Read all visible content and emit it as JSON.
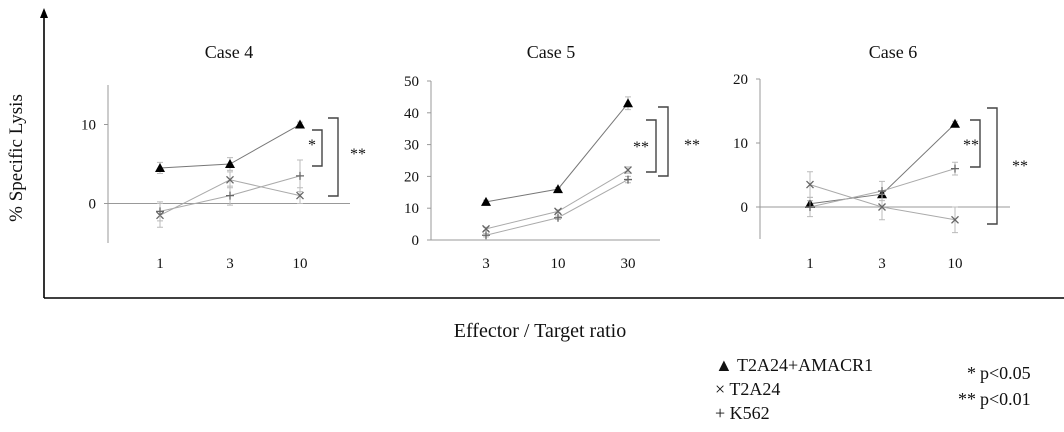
{
  "figure": {
    "ylabel": "% Specific Lysis",
    "xlabel": "Effector / Target ratio"
  },
  "chart_data": [
    {
      "type": "line",
      "title": "Case 4",
      "x": [
        "1",
        "3",
        "10"
      ],
      "ylim": [
        -5,
        15
      ],
      "yticks": [
        0,
        10
      ],
      "series": [
        {
          "name": "T2A24+AMACR1",
          "marker": "triangle",
          "values": [
            4.5,
            5.0,
            10.0
          ],
          "errors": [
            0.7,
            0.8,
            0.3
          ]
        },
        {
          "name": "T2A24",
          "marker": "x",
          "values": [
            -1.5,
            3.0,
            1.0
          ],
          "errors": [
            1.5,
            1.0,
            1.0
          ]
        },
        {
          "name": "K562",
          "marker": "plus",
          "values": [
            -1.0,
            1.0,
            3.5
          ],
          "errors": [
            1.2,
            1.2,
            2.0
          ]
        }
      ],
      "significance": [
        {
          "label": "*",
          "between": [
            "T2A24+AMACR1",
            "K562"
          ]
        },
        {
          "label": "**",
          "between": [
            "T2A24+AMACR1",
            "T2A24"
          ]
        }
      ]
    },
    {
      "type": "line",
      "title": "Case 5",
      "x": [
        "3",
        "10",
        "30"
      ],
      "ylim": [
        0,
        50
      ],
      "yticks": [
        0,
        10,
        20,
        30,
        40,
        50
      ],
      "series": [
        {
          "name": "T2A24+AMACR1",
          "marker": "triangle",
          "values": [
            12,
            16,
            43
          ],
          "errors": [
            0.5,
            0.5,
            2.0
          ]
        },
        {
          "name": "T2A24",
          "marker": "x",
          "values": [
            3.5,
            9,
            22
          ],
          "errors": [
            0.5,
            0.5,
            1.0
          ]
        },
        {
          "name": "K562",
          "marker": "plus",
          "values": [
            1.5,
            7,
            19
          ],
          "errors": [
            0.5,
            0.5,
            1.0
          ]
        }
      ],
      "significance": [
        {
          "label": "**",
          "between": [
            "T2A24+AMACR1",
            "T2A24"
          ]
        },
        {
          "label": "**",
          "between": [
            "T2A24+AMACR1",
            "K562"
          ]
        }
      ]
    },
    {
      "type": "line",
      "title": "Case 6",
      "x": [
        "1",
        "3",
        "10"
      ],
      "ylim": [
        -5,
        20
      ],
      "yticks": [
        0,
        10,
        20
      ],
      "series": [
        {
          "name": "T2A24+AMACR1",
          "marker": "triangle",
          "values": [
            0.5,
            2.0,
            13.0
          ],
          "errors": [
            0.5,
            0.5,
            0.4
          ]
        },
        {
          "name": "T2A24",
          "marker": "x",
          "values": [
            3.5,
            0.0,
            -2.0
          ],
          "errors": [
            2.0,
            2.0,
            2.0
          ]
        },
        {
          "name": "K562",
          "marker": "plus",
          "values": [
            0.0,
            2.5,
            6.0
          ],
          "errors": [
            1.5,
            1.5,
            1.0
          ]
        }
      ],
      "significance": [
        {
          "label": "**",
          "between": [
            "T2A24+AMACR1",
            "K562"
          ]
        },
        {
          "label": "**",
          "between": [
            "T2A24+AMACR1",
            "T2A24"
          ]
        }
      ]
    }
  ],
  "legend": {
    "items": [
      {
        "symbol": "▲",
        "label": "T2A24+AMACR1"
      },
      {
        "symbol": "×",
        "label": "T2A24"
      },
      {
        "symbol": "+",
        "label": "K562"
      }
    ],
    "significance": [
      {
        "stars": "*",
        "label": "p<0.05"
      },
      {
        "stars": "**",
        "label": "p<0.01"
      }
    ]
  }
}
